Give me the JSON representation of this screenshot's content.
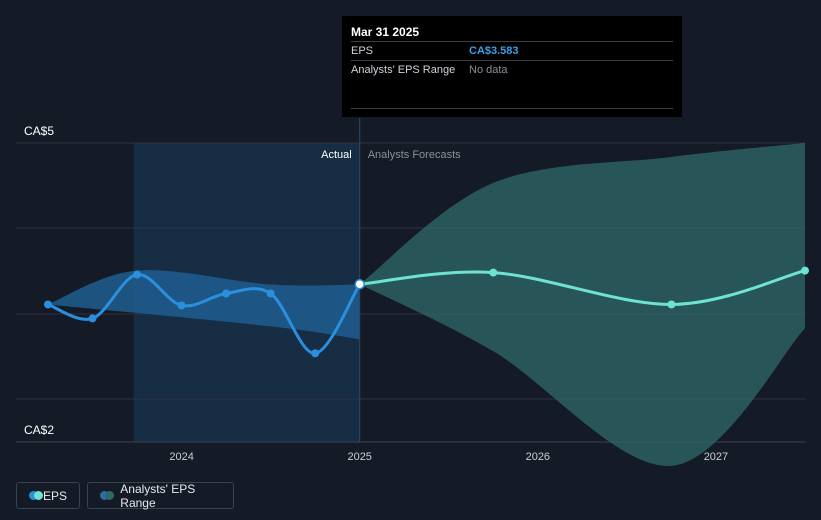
{
  "tooltip": {
    "date": "Mar 31 2025",
    "rows": [
      {
        "label": "EPS",
        "value": "CA$3.583"
      },
      {
        "label": "Analysts' EPS Range",
        "value": "No data"
      }
    ]
  },
  "legend": {
    "eps_label": "EPS",
    "range_label": "Analysts' EPS Range"
  },
  "chart_data": {
    "type": "line",
    "ylim": [
      2,
      5
    ],
    "y_tick_labels": [
      "CA$5",
      "CA$2"
    ],
    "x_tick_labels": [
      {
        "label": "2024",
        "x": 2024.0
      },
      {
        "label": "2025",
        "x": 2025.0
      },
      {
        "label": "2026",
        "x": 2026.0
      },
      {
        "label": "2027",
        "x": 2027.0
      }
    ],
    "xlim": [
      2023.6,
      2028.0
    ],
    "divider_labels": {
      "past": "Actual",
      "future": "Analysts Forecasts"
    },
    "divider_x": 2025.25,
    "grid": true,
    "legend_position": "bottom-left",
    "colors": {
      "eps_actual": "#2b8fdd",
      "eps_forecast": "#6ee3d3",
      "range_actual": "#1f5d8f",
      "range_forecast": "#2f6a68"
    },
    "series": [
      {
        "name": "EPS",
        "points": [
          {
            "x": 2023.75,
            "y": 3.38
          },
          {
            "x": 2024.0,
            "y": 3.24
          },
          {
            "x": 2024.25,
            "y": 3.68
          },
          {
            "x": 2024.5,
            "y": 3.37
          },
          {
            "x": 2024.75,
            "y": 3.49
          },
          {
            "x": 2025.0,
            "y": 3.49
          },
          {
            "x": 2025.25,
            "y": 2.89
          },
          {
            "x": 2025.5,
            "y": 3.583
          }
        ],
        "highlight_x": 2025.5
      },
      {
        "name": "EPS Forecast",
        "points": [
          {
            "x": 2025.5,
            "y": 3.583
          },
          {
            "x": 2026.25,
            "y": 3.7
          },
          {
            "x": 2027.25,
            "y": 3.38
          },
          {
            "x": 2028.0,
            "y": 3.72
          }
        ]
      }
    ],
    "range_actual": {
      "upper": [
        {
          "x": 2023.75,
          "y": 3.38
        },
        {
          "x": 2024.25,
          "y": 3.72
        },
        {
          "x": 2025.0,
          "y": 3.58
        },
        {
          "x": 2025.5,
          "y": 3.58
        }
      ],
      "lower": [
        {
          "x": 2023.75,
          "y": 3.38
        },
        {
          "x": 2025.0,
          "y": 3.16
        },
        {
          "x": 2025.5,
          "y": 3.03
        }
      ]
    },
    "range_forecast": {
      "upper": [
        {
          "x": 2025.5,
          "y": 3.583
        },
        {
          "x": 2026.25,
          "y": 4.6
        },
        {
          "x": 2027.25,
          "y": 4.86
        },
        {
          "x": 2028.0,
          "y": 5.0
        }
      ],
      "lower": [
        {
          "x": 2025.5,
          "y": 3.583
        },
        {
          "x": 2026.25,
          "y": 2.91
        },
        {
          "x": 2027.25,
          "y": 1.76
        },
        {
          "x": 2028.0,
          "y": 3.14
        }
      ]
    }
  }
}
